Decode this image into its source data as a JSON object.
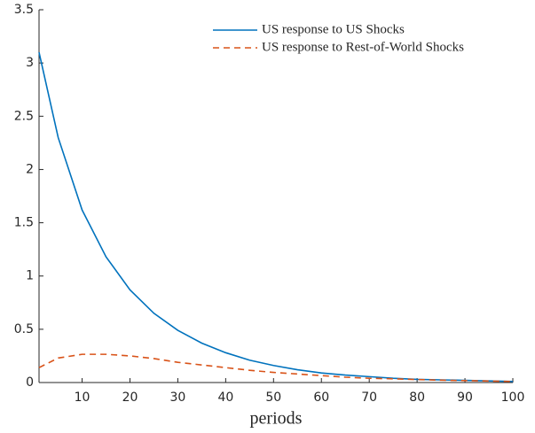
{
  "chart_data": {
    "type": "line",
    "x_label": "periods",
    "x": [
      1,
      5,
      10,
      15,
      20,
      25,
      30,
      35,
      40,
      45,
      50,
      55,
      60,
      65,
      70,
      75,
      80,
      85,
      90,
      95,
      100
    ],
    "series": [
      {
        "name": "US response to US Shocks",
        "color": "#0072bd",
        "dash": false,
        "values": [
          3.1,
          2.3,
          1.62,
          1.18,
          0.87,
          0.65,
          0.49,
          0.37,
          0.28,
          0.21,
          0.16,
          0.12,
          0.09,
          0.07,
          0.055,
          0.04,
          0.03,
          0.025,
          0.02,
          0.015,
          0.01
        ]
      },
      {
        "name": "US response to Rest-of-World Shocks",
        "color": "#d95319",
        "dash": true,
        "values": [
          0.14,
          0.23,
          0.265,
          0.265,
          0.25,
          0.225,
          0.19,
          0.165,
          0.14,
          0.115,
          0.095,
          0.08,
          0.065,
          0.05,
          0.04,
          0.035,
          0.028,
          0.022,
          0.018,
          0.014,
          0.01
        ]
      }
    ],
    "xlim": [
      1,
      100
    ],
    "xticks": [
      10,
      20,
      30,
      40,
      50,
      60,
      70,
      80,
      90,
      100
    ],
    "ylim": [
      0,
      3.5
    ],
    "yticks": [
      0,
      0.5,
      1,
      1.5,
      2,
      2.5,
      3,
      3.5
    ],
    "legend": "upper right"
  }
}
